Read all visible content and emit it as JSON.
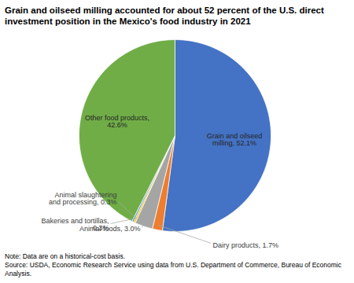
{
  "chart_data": {
    "type": "pie",
    "title": "Grain and oilseed milling accounted for about 52 percent of the U.S. direct investment position in the Mexico's food industry in 2021",
    "categories": [
      "Grain and oilseed milling",
      "Dairy products",
      "Animal foods",
      "Bakeries and tortillas",
      "Animal slaughtering and processing",
      "Other food products"
    ],
    "values": [
      52.1,
      1.7,
      3.0,
      0.3,
      0.3,
      42.6
    ],
    "value_labels": [
      "Grain and oilseed milling, 52.1%",
      "Dairy products, 1.7%",
      "Animal foods, 3.0%",
      "Bakeries and tortillas, 0.3%",
      "Animal slaughtering and processing, 0.3%",
      "Other food products, 42.6%"
    ],
    "colors": [
      "#4472c4",
      "#ed7d31",
      "#a5a5a5",
      "#ffc000",
      "#5b9bd5",
      "#70ad47"
    ],
    "data_labels": true,
    "notes": [
      "Note: Data are on a historical-cost basis.",
      "Source: USDA, Economic Research Service using data from U.S. Department of Commerce, Bureau of Economic Analysis."
    ]
  }
}
